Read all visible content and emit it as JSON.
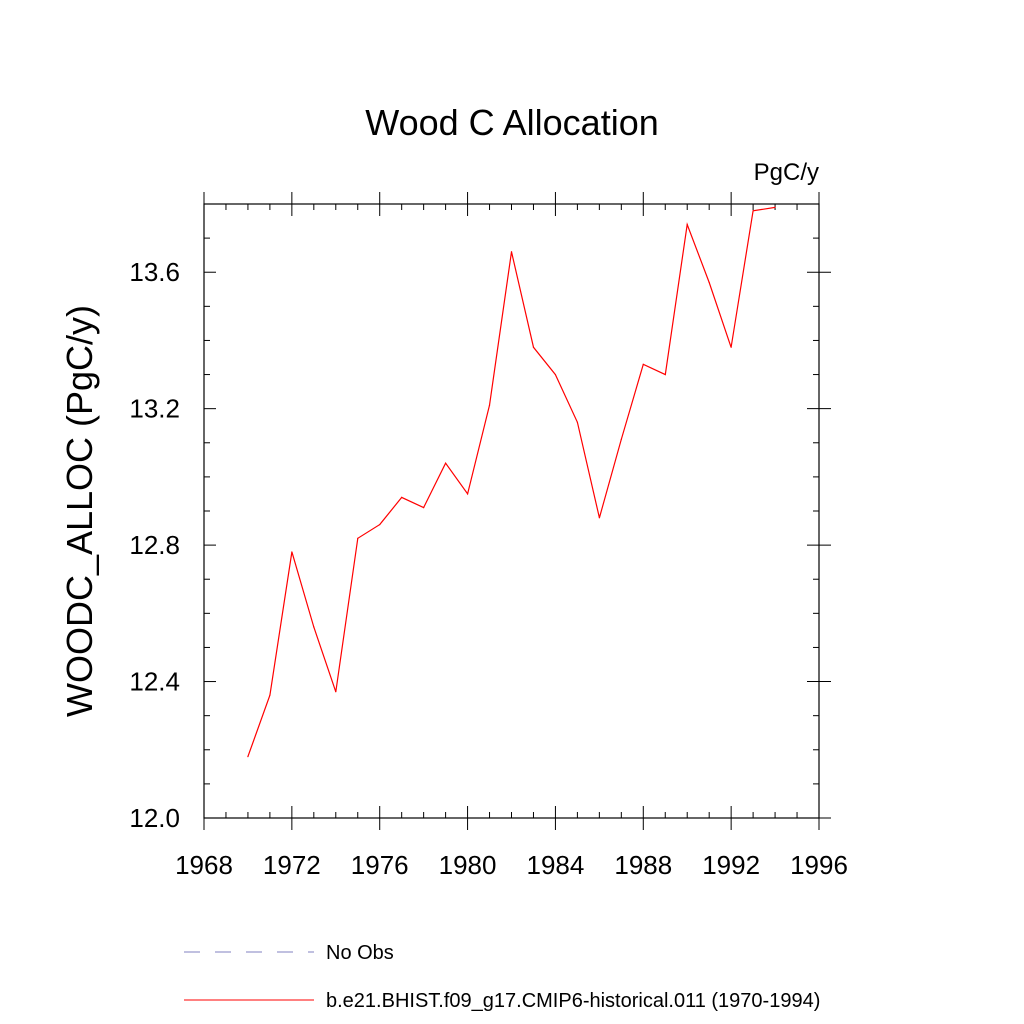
{
  "chart_data": {
    "type": "line",
    "title": "Wood C Allocation",
    "units_label": "PgC/y",
    "xlabel": "",
    "ylabel": "WOODC_ALLOC  (PgC/y)",
    "xlim": [
      1968,
      1996
    ],
    "ylim": [
      12.0,
      13.8
    ],
    "x_ticks": [
      1968,
      1972,
      1976,
      1980,
      1984,
      1988,
      1992,
      1996
    ],
    "x_tick_labels": [
      "1968",
      "1972",
      "1976",
      "1980",
      "1984",
      "1988",
      "1992",
      "1996"
    ],
    "y_ticks": [
      12.0,
      12.4,
      12.8,
      13.2,
      13.6
    ],
    "y_tick_labels": [
      "12.0",
      "12.4",
      "12.8",
      "13.2",
      "13.6"
    ],
    "grid": false,
    "legend_position": "bottom",
    "series": [
      {
        "name": "b.e21.BHIST.f09_g17.CMIP6-historical.011 (1970-1994)",
        "color": "#ff0000",
        "dash": "solid",
        "x": [
          1970,
          1971,
          1972,
          1973,
          1974,
          1975,
          1976,
          1977,
          1978,
          1979,
          1980,
          1981,
          1982,
          1983,
          1984,
          1985,
          1986,
          1987,
          1988,
          1989,
          1990,
          1991,
          1992,
          1993,
          1994
        ],
        "y": [
          12.18,
          12.36,
          12.78,
          12.56,
          12.37,
          12.82,
          12.86,
          12.94,
          12.91,
          13.04,
          12.95,
          13.21,
          13.66,
          13.38,
          13.3,
          13.16,
          12.88,
          13.11,
          13.33,
          13.3,
          13.74,
          13.57,
          13.38,
          13.78,
          13.79
        ]
      }
    ],
    "legend": [
      {
        "label": "No Obs",
        "color": "#8080c0",
        "dash": "dashed"
      },
      {
        "label": "b.e21.BHIST.f09_g17.CMIP6-historical.011 (1970-1994)",
        "color": "#ff0000",
        "dash": "solid"
      }
    ]
  }
}
